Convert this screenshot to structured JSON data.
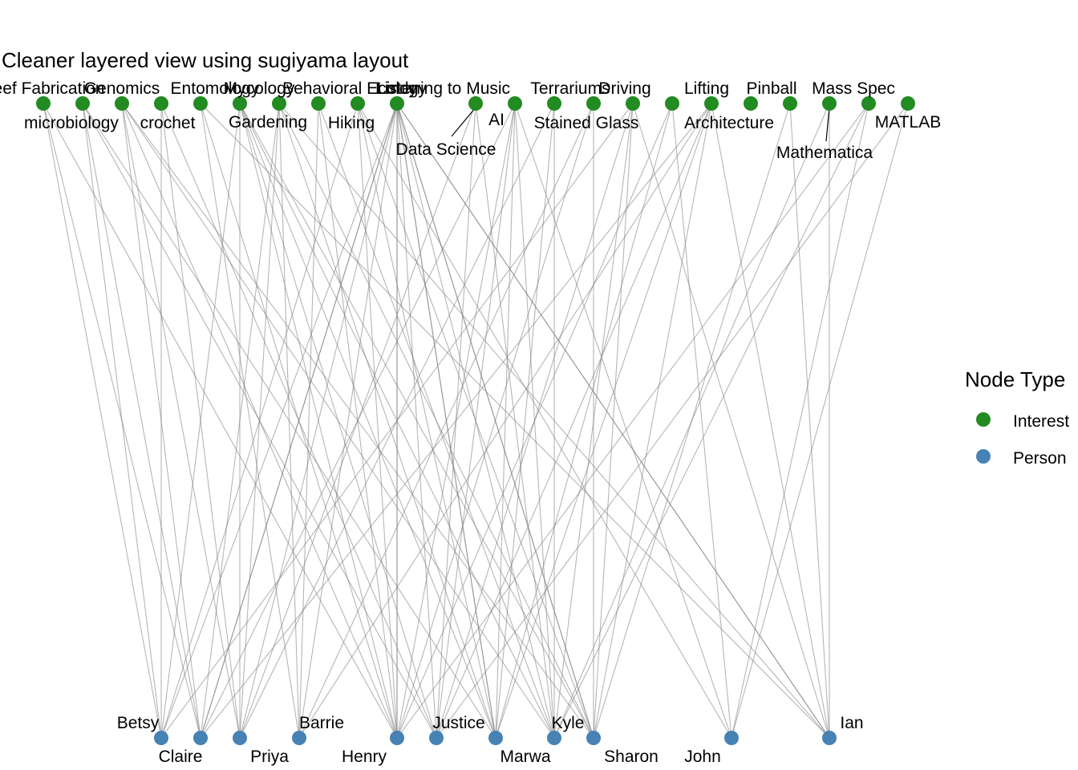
{
  "title": "Cleaner layered view using sugiyama layout",
  "legend": {
    "title": "Node Type",
    "items": [
      {
        "label": "Interest",
        "color": "#228B22"
      },
      {
        "label": "Person",
        "color": "#4682B4"
      }
    ]
  },
  "interests": [
    "Beef Fabrication",
    "microbiology",
    "Genomics",
    "crochet",
    "Entomology",
    "Gardening",
    "Mycology",
    "Behavioral Ecology",
    "Hiking",
    "Lindy",
    "Listening to Music",
    "Data Science",
    "AI",
    "Terrariums",
    "Stained Glass",
    "Driving",
    "Lifting",
    "Architecture",
    "Pinball",
    "Mass Spec",
    "Mathematica",
    "MATLAB"
  ],
  "people": [
    "Betsy",
    "Claire",
    "Priya",
    "Barrie",
    "Henry",
    "Justice",
    "Marwa",
    "Kyle",
    "Sharon",
    "John",
    "Ian"
  ],
  "edges": [
    [
      "Beef Fabrication",
      "Betsy"
    ],
    [
      "Beef Fabrication",
      "Claire"
    ],
    [
      "Beef Fabrication",
      "Henry"
    ],
    [
      "microbiology",
      "Betsy"
    ],
    [
      "microbiology",
      "Claire"
    ],
    [
      "microbiology",
      "Marwa"
    ],
    [
      "microbiology",
      "Justice"
    ],
    [
      "Genomics",
      "Priya"
    ],
    [
      "Genomics",
      "Claire"
    ],
    [
      "Genomics",
      "Henry"
    ],
    [
      "Genomics",
      "Kyle"
    ],
    [
      "Genomics",
      "Sharon"
    ],
    [
      "crochet",
      "Betsy"
    ],
    [
      "crochet",
      "Priya"
    ],
    [
      "crochet",
      "Justice"
    ],
    [
      "Entomology",
      "Barrie"
    ],
    [
      "Entomology",
      "Henry"
    ],
    [
      "Entomology",
      "Ian"
    ],
    [
      "Gardening",
      "Betsy"
    ],
    [
      "Gardening",
      "Priya"
    ],
    [
      "Gardening",
      "Henry"
    ],
    [
      "Gardening",
      "Justice"
    ],
    [
      "Gardening",
      "Marwa"
    ],
    [
      "Gardening",
      "Kyle"
    ],
    [
      "Gardening",
      "Sharon"
    ],
    [
      "Mycology",
      "Claire"
    ],
    [
      "Mycology",
      "Priya"
    ],
    [
      "Mycology",
      "Barrie"
    ],
    [
      "Mycology",
      "Marwa"
    ],
    [
      "Mycology",
      "Sharon"
    ],
    [
      "Mycology",
      "Ian"
    ],
    [
      "Behavioral Ecology",
      "Barrie"
    ],
    [
      "Behavioral Ecology",
      "Henry"
    ],
    [
      "Behavioral Ecology",
      "Kyle"
    ],
    [
      "Hiking",
      "Betsy"
    ],
    [
      "Hiking",
      "Henry"
    ],
    [
      "Hiking",
      "Marwa"
    ],
    [
      "Hiking",
      "Sharon"
    ],
    [
      "Hiking",
      "John"
    ],
    [
      "Lindy",
      "Claire"
    ],
    [
      "Lindy",
      "Priya"
    ],
    [
      "Lindy",
      "Barrie"
    ],
    [
      "Lindy",
      "Henry"
    ],
    [
      "Lindy",
      "Justice"
    ],
    [
      "Lindy",
      "Marwa"
    ],
    [
      "Lindy",
      "Kyle"
    ],
    [
      "Lindy",
      "Sharon"
    ],
    [
      "Lindy",
      "Ian"
    ],
    [
      "Listening to Music",
      "Betsy"
    ],
    [
      "Listening to Music",
      "Claire"
    ],
    [
      "Listening to Music",
      "Henry"
    ],
    [
      "Listening to Music",
      "Marwa"
    ],
    [
      "Listening to Music",
      "Sharon"
    ],
    [
      "Listening to Music",
      "Ian"
    ],
    [
      "Data Science",
      "Priya"
    ],
    [
      "Data Science",
      "Justice"
    ],
    [
      "Data Science",
      "Kyle"
    ],
    [
      "AI",
      "Claire"
    ],
    [
      "AI",
      "Henry"
    ],
    [
      "AI",
      "Justice"
    ],
    [
      "AI",
      "Marwa"
    ],
    [
      "AI",
      "Kyle"
    ],
    [
      "AI",
      "John"
    ],
    [
      "Terrariums",
      "Priya"
    ],
    [
      "Terrariums",
      "Marwa"
    ],
    [
      "Terrariums",
      "Kyle"
    ],
    [
      "Stained Glass",
      "Barrie"
    ],
    [
      "Stained Glass",
      "Henry"
    ],
    [
      "Stained Glass",
      "Sharon"
    ],
    [
      "Driving",
      "Betsy"
    ],
    [
      "Driving",
      "Justice"
    ],
    [
      "Driving",
      "Kyle"
    ],
    [
      "Driving",
      "Sharon"
    ],
    [
      "Driving",
      "Ian"
    ],
    [
      "Lifting",
      "Henry"
    ],
    [
      "Lifting",
      "Marwa"
    ],
    [
      "Lifting",
      "John"
    ],
    [
      "Architecture",
      "Claire"
    ],
    [
      "Architecture",
      "Barrie"
    ],
    [
      "Architecture",
      "Justice"
    ],
    [
      "Architecture",
      "Marwa"
    ],
    [
      "Architecture",
      "Sharon"
    ],
    [
      "Architecture",
      "Ian"
    ],
    [
      "Pinball",
      "Sharon"
    ],
    [
      "Pinball",
      "Ian"
    ],
    [
      "Mass Spec",
      "Henry"
    ],
    [
      "Mass Spec",
      "Kyle"
    ],
    [
      "Mass Spec",
      "John"
    ],
    [
      "Mathematica",
      "Kyle"
    ],
    [
      "Mathematica",
      "Ian"
    ],
    [
      "MATLAB",
      "John"
    ],
    [
      "MATLAB",
      "Justice"
    ]
  ]
}
